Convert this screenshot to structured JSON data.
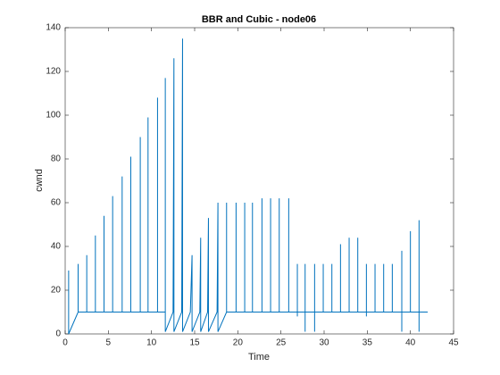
{
  "chart_data": {
    "type": "line",
    "title": "BBR and Cubic - node06",
    "xlabel": "Time",
    "ylabel": "cwnd",
    "xlim": [
      0,
      45
    ],
    "xticks": [
      0,
      5,
      10,
      15,
      20,
      25,
      30,
      35,
      40,
      45
    ],
    "ylim": [
      0,
      140
    ],
    "yticks": [
      0,
      20,
      40,
      60,
      80,
      100,
      120,
      140
    ],
    "series": [
      {
        "color": "#0072bd",
        "x": [
          0.4,
          0.4,
          1.5,
          1.5,
          1.5,
          2.5,
          2.5,
          2.5,
          3.5,
          3.5,
          3.5,
          4.5,
          4.5,
          4.5,
          5.5,
          5.5,
          5.5,
          6.6,
          6.6,
          6.6,
          7.6,
          7.6,
          7.6,
          8.7,
          8.7,
          8.7,
          9.6,
          9.6,
          9.6,
          10.7,
          10.7,
          10.7,
          11.6,
          11.6,
          11.6,
          12.5,
          12.6,
          12.6,
          13.5,
          13.6,
          13.6,
          14.5,
          14.7,
          14.7,
          15.6,
          15.7,
          15.7,
          16.5,
          16.6,
          16.6,
          17.6,
          17.7,
          17.7,
          18.7,
          18.7,
          18.7,
          19.8,
          19.8,
          19.8,
          20.8,
          20.8,
          20.8,
          21.7,
          21.7,
          21.7,
          22.8,
          22.8,
          22.8,
          23.8,
          23.8,
          23.8,
          24.8,
          24.8,
          24.8,
          25.9,
          25.9,
          25.9,
          26.9,
          26.9,
          26.9,
          26.9,
          27.8,
          27.8,
          27.8,
          27.8,
          28.9,
          28.9,
          28.9,
          28.9,
          29.9,
          29.9,
          29.9,
          30.9,
          30.9,
          30.9,
          31.9,
          31.9,
          31.9,
          32.9,
          32.9,
          32.9,
          33.9,
          33.9,
          33.9,
          34.9,
          34.9,
          34.9,
          34.9,
          35.9,
          35.9,
          35.9,
          36.9,
          36.9,
          36.9,
          37.9,
          37.9,
          37.9,
          39,
          39,
          39,
          39,
          40,
          40,
          40,
          41,
          41,
          41,
          41,
          42
        ],
        "values": [
          29,
          0,
          10,
          32,
          10,
          10,
          36,
          10,
          10,
          45,
          10,
          10,
          54,
          10,
          10,
          63,
          10,
          10,
          72,
          10,
          10,
          81,
          10,
          10,
          90,
          10,
          10,
          99,
          10,
          10,
          108,
          10,
          10,
          117,
          1,
          10,
          126,
          1,
          10,
          135,
          1,
          10,
          36,
          1,
          10,
          44,
          1,
          10,
          53,
          1,
          10,
          60,
          1,
          10,
          60,
          10,
          10,
          60,
          10,
          10,
          60,
          10,
          10,
          60,
          10,
          10,
          62,
          10,
          10,
          62,
          10,
          10,
          62,
          10,
          10,
          62,
          10,
          10,
          32,
          8,
          10,
          10,
          32,
          1,
          10,
          10,
          32,
          1,
          10,
          10,
          32,
          10,
          10,
          32,
          10,
          10,
          41,
          10,
          10,
          44,
          10,
          10,
          44,
          10,
          10,
          32,
          8,
          10,
          10,
          32,
          10,
          10,
          32,
          10,
          10,
          32,
          10,
          10,
          38,
          1,
          10,
          10,
          47,
          10,
          10,
          52,
          1,
          10,
          10
        ]
      }
    ]
  }
}
